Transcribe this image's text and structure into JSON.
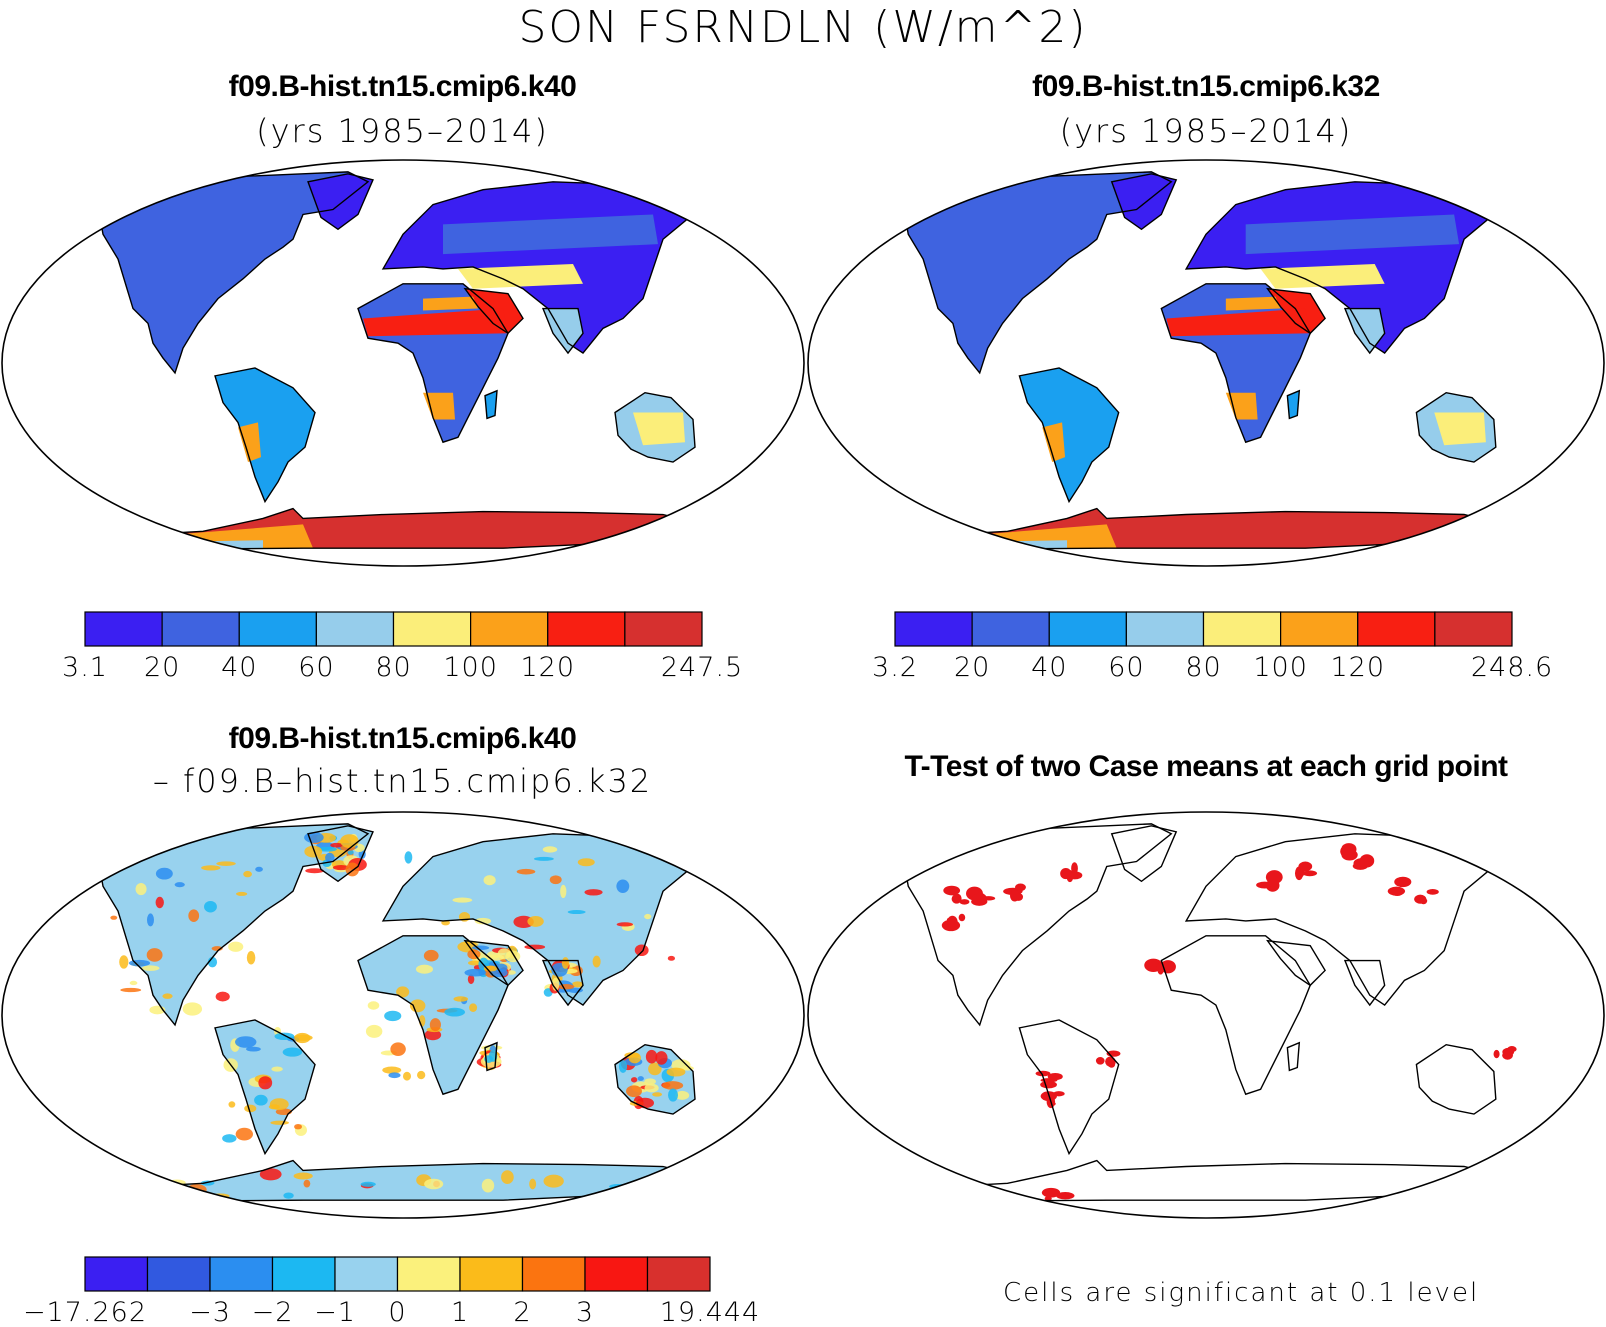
{
  "figure": {
    "title": "SON FSRNDLN (W/m^2)"
  },
  "panels": {
    "top_left": {
      "title": "f09.B-hist.tn15.cmip6.k40",
      "subtitle": "(yrs 1985–2014)",
      "colorbar": {
        "colors": [
          "#3b1ff2",
          "#3f63e0",
          "#1aa0f0",
          "#96cdeb",
          "#fbee7a",
          "#fba11a",
          "#f81f12",
          "#d6302f"
        ],
        "labels": [
          "3.1",
          "20",
          "40",
          "60",
          "80",
          "100",
          "120",
          "",
          "247.5"
        ]
      }
    },
    "top_right": {
      "title": "f09.B-hist.tn15.cmip6.k32",
      "subtitle": "(yrs 1985–2014)",
      "colorbar": {
        "colors": [
          "#3b1ff2",
          "#3f63e0",
          "#1aa0f0",
          "#96cdeb",
          "#fbee7a",
          "#fba11a",
          "#f81f12",
          "#d6302f"
        ],
        "labels": [
          "3.2",
          "20",
          "40",
          "60",
          "80",
          "100",
          "120",
          "",
          "248.6"
        ]
      }
    },
    "bottom_left": {
      "title": "f09.B-hist.tn15.cmip6.k40",
      "subtitle": "– f09.B–hist.tn15.cmip6.k32",
      "colorbar": {
        "colors": [
          "#3b1ff2",
          "#3159e0",
          "#2b8ef0",
          "#1cb8f2",
          "#98d2ee",
          "#fbf17c",
          "#fbbb1a",
          "#fb7410",
          "#f81712",
          "#d8302d"
        ],
        "labels": [
          "−17.262",
          "",
          "−3",
          "−2",
          "−1",
          "0",
          "1",
          "2",
          "3",
          "",
          "19.444"
        ]
      }
    },
    "bottom_right": {
      "title": "T-Test of two Case means at each grid point",
      "note": "Cells are significant at 0.1 level",
      "significant_color": "#e8161b"
    }
  }
}
